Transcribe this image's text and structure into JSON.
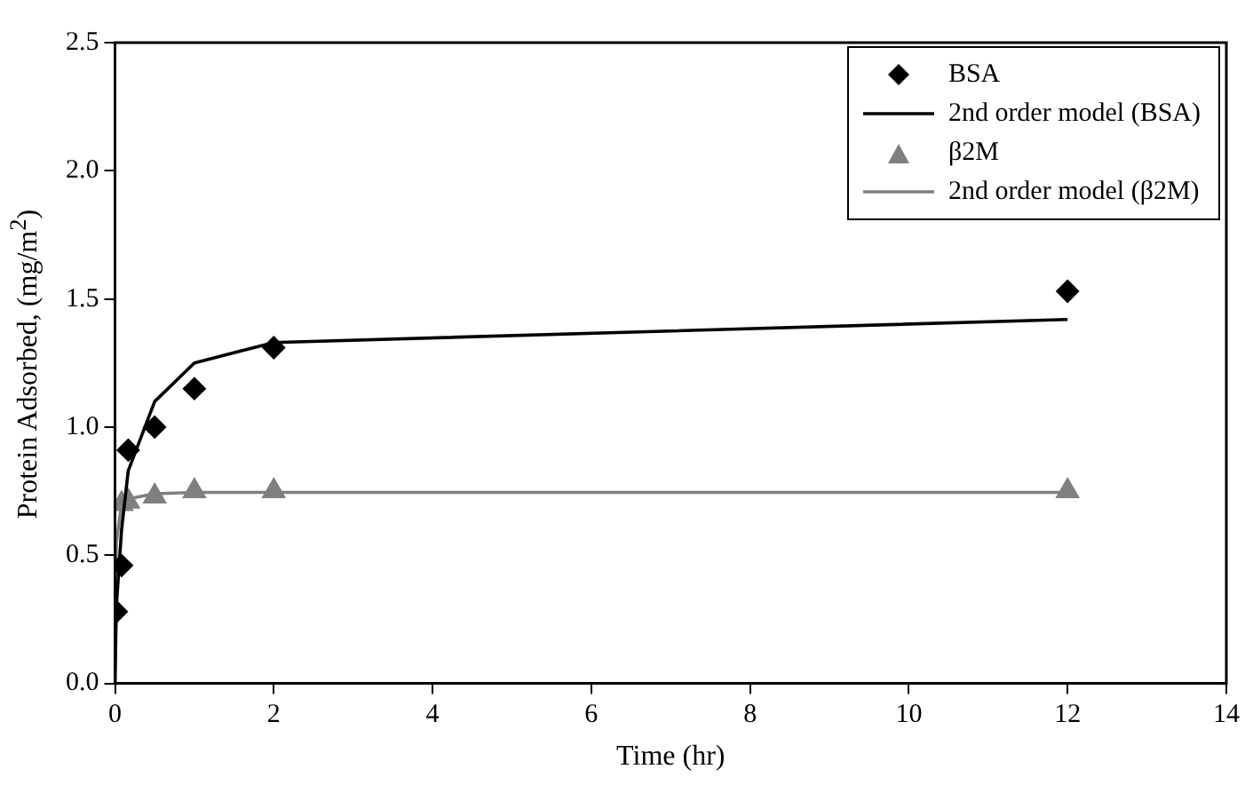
{
  "chart_data": {
    "type": "scatter",
    "xlabel": "Time (hr)",
    "ylabel": "Protein Adsorbed, (mg/m$^{2}$)",
    "xlim": [
      0,
      14
    ],
    "xticks": [
      0,
      2,
      4,
      6,
      8,
      10,
      12,
      14
    ],
    "ylim": [
      0,
      2.5
    ],
    "yticks": [
      {
        "value": 0,
        "label": "0.0"
      },
      0.5,
      {
        "value": 1,
        "label": "1.0"
      },
      1.5,
      {
        "value": 2,
        "label": "2.0"
      },
      2.5
    ],
    "grid": false,
    "legend": "top right",
    "series": [
      {
        "name": "BSA",
        "type": "scatter",
        "marker": "diamond",
        "color": "#000000",
        "x": [
          0.017,
          0.083,
          0.167,
          0.5,
          1,
          2,
          12
        ],
        "values": [
          0.28,
          0.46,
          0.91,
          1.0,
          1.15,
          1.31,
          1.53
        ]
      },
      {
        "name": "2nd order model (BSA)",
        "type": "line",
        "marker": "none",
        "color": "#000000",
        "x": [
          0,
          0.017,
          0.083,
          0.167,
          0.5,
          1,
          2,
          12
        ],
        "values": [
          0,
          0.3,
          0.6,
          0.83,
          1.1,
          1.25,
          1.33,
          1.42
        ]
      },
      {
        "name": "β2M",
        "type": "scatter",
        "marker": "triangle",
        "color": "#7f7f7f",
        "x": [
          0.083,
          0.167,
          0.5,
          1,
          2,
          12
        ],
        "values": [
          0.7,
          0.71,
          0.73,
          0.75,
          0.75,
          0.75
        ]
      },
      {
        "name": "2nd order model (β2M)",
        "type": "line",
        "marker": "none",
        "color": "#7f7f7f",
        "x": [
          0,
          0.017,
          0.083,
          0.167,
          0.5,
          1,
          2,
          12
        ],
        "values": [
          0,
          0.55,
          0.7,
          0.72,
          0.74,
          0.745,
          0.745,
          0.745
        ]
      }
    ]
  }
}
